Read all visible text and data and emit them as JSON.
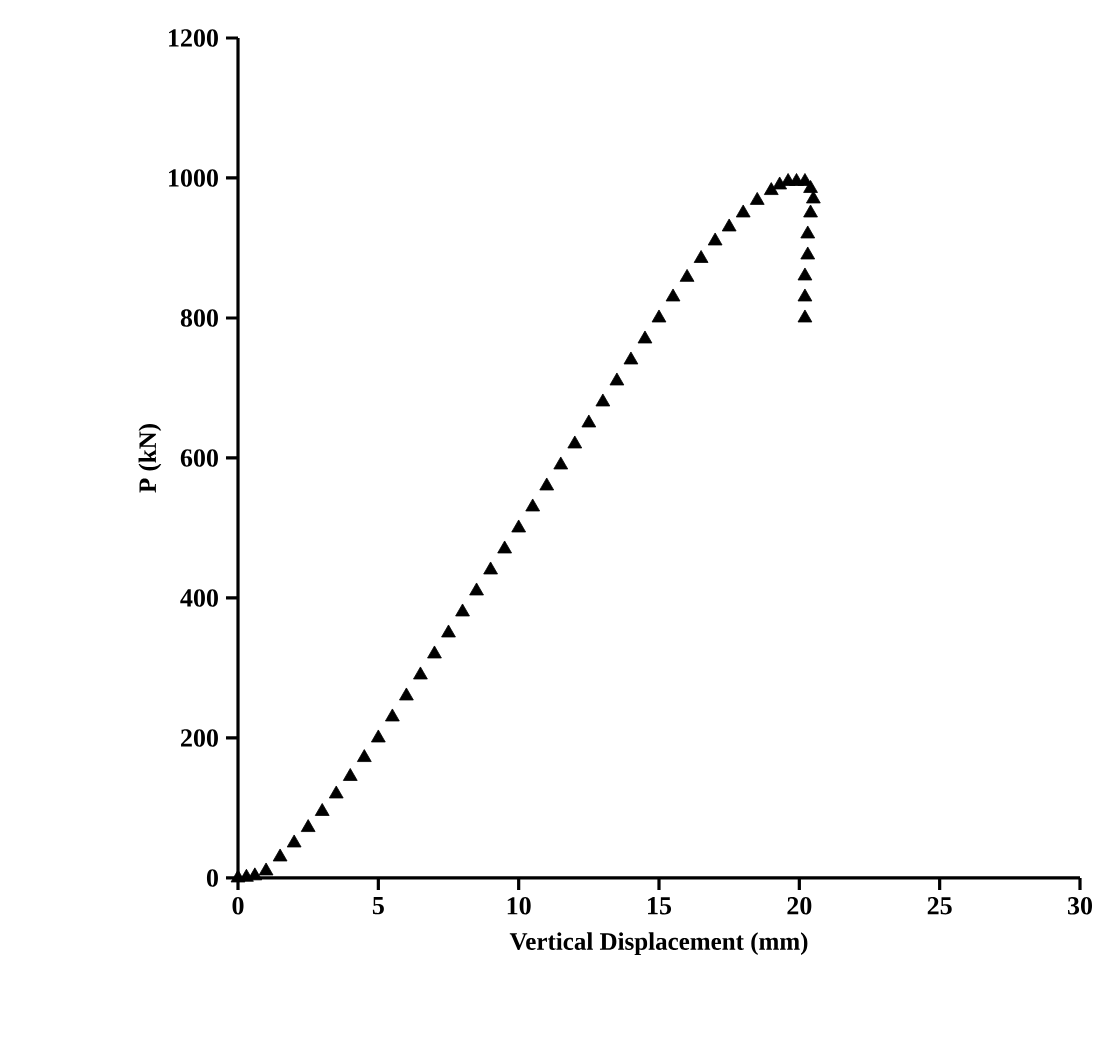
{
  "chart_data": {
    "type": "scatter",
    "xlabel": "Vertical Displacement (mm)",
    "ylabel": "P (kN)",
    "xlim": [
      0,
      30
    ],
    "ylim": [
      0,
      1200
    ],
    "xticks": [
      0,
      5,
      10,
      15,
      20,
      25,
      30
    ],
    "yticks": [
      0,
      200,
      400,
      600,
      800,
      1000,
      1200
    ],
    "marker": "triangle",
    "grid": false,
    "series": [
      {
        "color": "#000000",
        "x": [
          0,
          0.3,
          0.6,
          1,
          1.5,
          2,
          2.5,
          3,
          3.5,
          4,
          4.5,
          5,
          5.5,
          6,
          6.5,
          7,
          7.5,
          8,
          8.5,
          9,
          9.5,
          10,
          10.5,
          11,
          11.5,
          12,
          12.5,
          13,
          13.5,
          14,
          14.5,
          15,
          15.5,
          16,
          16.5,
          17,
          17.5,
          18,
          18.5,
          19,
          19.3,
          19.6,
          19.9,
          20.2,
          20.4,
          20.5,
          20.4,
          20.3,
          20.3,
          20.2,
          20.2,
          20.2
        ],
        "values": [
          0,
          1,
          3,
          10,
          30,
          50,
          72,
          95,
          120,
          145,
          172,
          200,
          230,
          260,
          290,
          320,
          350,
          380,
          410,
          440,
          470,
          500,
          530,
          560,
          590,
          620,
          650,
          680,
          710,
          740,
          770,
          800,
          830,
          858,
          885,
          910,
          930,
          950,
          968,
          982,
          990,
          995,
          995,
          995,
          985,
          970,
          950,
          920,
          890,
          860,
          830,
          800
        ]
      }
    ]
  }
}
